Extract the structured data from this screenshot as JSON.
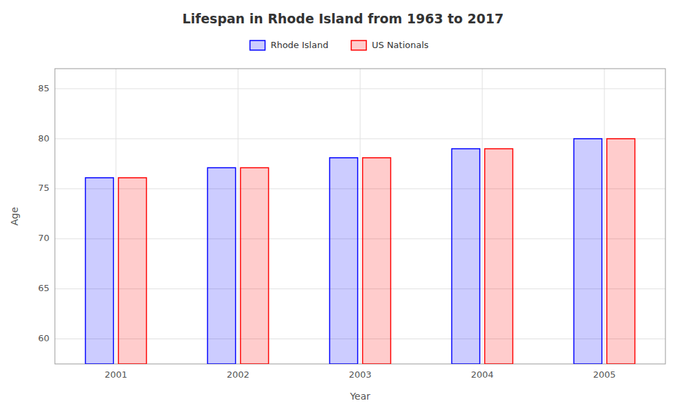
{
  "chart_data": {
    "type": "bar",
    "title": "Lifespan in Rhode Island from 1963 to 2017",
    "x_label": "Year",
    "y_label": "Age",
    "categories": [
      "2001",
      "2002",
      "2003",
      "2004",
      "2005"
    ],
    "series": [
      {
        "name": "Rhode Island",
        "color": "#0000ff",
        "values": [
          76.1,
          77.1,
          78.1,
          79.0,
          80.0
        ]
      },
      {
        "name": "US Nationals",
        "color": "#ff0000",
        "values": [
          76.1,
          77.1,
          78.1,
          79.0,
          80.0
        ]
      }
    ],
    "ylim": [
      57.5,
      87
    ],
    "yticks": [
      60,
      65,
      70,
      75,
      80,
      85
    ],
    "grid": true,
    "legend": "top"
  }
}
